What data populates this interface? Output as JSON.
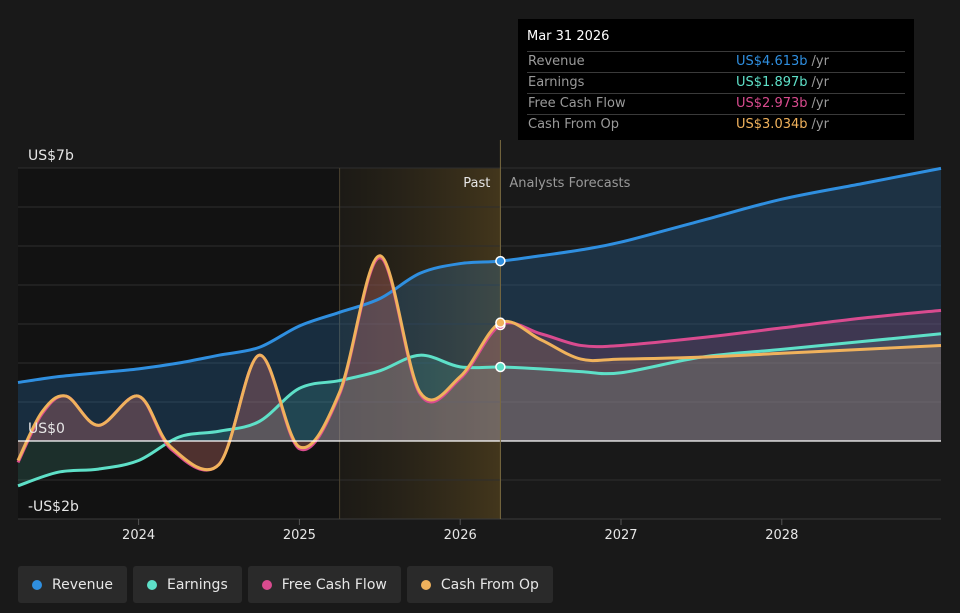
{
  "tooltip": {
    "date": "Mar 31 2026",
    "unit": "/yr",
    "rows": [
      {
        "name": "Revenue",
        "value": "US$4.613b",
        "color": "#2f8fe0"
      },
      {
        "name": "Earnings",
        "value": "US$1.897b",
        "color": "#5ee0c8"
      },
      {
        "name": "Free Cash Flow",
        "value": "US$2.973b",
        "color": "#d94b8f"
      },
      {
        "name": "Cash From Op",
        "value": "US$3.034b",
        "color": "#f0b25c"
      }
    ]
  },
  "labels": {
    "past": "Past",
    "forecast": "Analysts Forecasts"
  },
  "legend": [
    {
      "name": "Revenue",
      "color": "#2f8fe0"
    },
    {
      "name": "Earnings",
      "color": "#5ee0c8"
    },
    {
      "name": "Free Cash Flow",
      "color": "#d94b8f"
    },
    {
      "name": "Cash From Op",
      "color": "#f0b25c"
    }
  ],
  "chart_data": {
    "type": "area",
    "ylim": [
      -2,
      7
    ],
    "y_tick_labels": [
      {
        "value": 7,
        "label": "US$7b"
      },
      {
        "value": 0,
        "label": "US$0"
      },
      {
        "value": -2,
        "label": "-US$2b"
      }
    ],
    "x_ticks": [
      2024,
      2025,
      2026,
      2027,
      2028
    ],
    "xlim": [
      2023.25,
      2028.99
    ],
    "grid": true,
    "highlight_region": [
      2025.25,
      2026.25
    ],
    "divider_x": 2026.25,
    "series": [
      {
        "name": "Revenue",
        "color": "#2f8fe0",
        "points": [
          [
            2023.25,
            1.5
          ],
          [
            2023.5,
            1.65
          ],
          [
            2023.75,
            1.75
          ],
          [
            2024,
            1.85
          ],
          [
            2024.25,
            2.0
          ],
          [
            2024.5,
            2.2
          ],
          [
            2024.75,
            2.4
          ],
          [
            2025,
            2.95
          ],
          [
            2025.25,
            3.3
          ],
          [
            2025.5,
            3.65
          ],
          [
            2025.75,
            4.3
          ],
          [
            2026,
            4.55
          ],
          [
            2026.25,
            4.613
          ],
          [
            2026.5,
            4.75
          ],
          [
            2026.75,
            4.9
          ],
          [
            2027,
            5.1
          ],
          [
            2027.5,
            5.65
          ],
          [
            2028,
            6.2
          ],
          [
            2028.5,
            6.6
          ],
          [
            2028.99,
            6.99
          ]
        ]
      },
      {
        "name": "Earnings",
        "color": "#5ee0c8",
        "points": [
          [
            2023.25,
            -1.15
          ],
          [
            2023.5,
            -0.8
          ],
          [
            2023.75,
            -0.72
          ],
          [
            2024,
            -0.5
          ],
          [
            2024.25,
            0.1
          ],
          [
            2024.5,
            0.25
          ],
          [
            2024.75,
            0.5
          ],
          [
            2025,
            1.35
          ],
          [
            2025.25,
            1.55
          ],
          [
            2025.5,
            1.8
          ],
          [
            2025.75,
            2.2
          ],
          [
            2026,
            1.9
          ],
          [
            2026.25,
            1.897
          ],
          [
            2026.5,
            1.85
          ],
          [
            2026.75,
            1.78
          ],
          [
            2027,
            1.75
          ],
          [
            2027.5,
            2.15
          ],
          [
            2028,
            2.35
          ],
          [
            2028.5,
            2.55
          ],
          [
            2028.99,
            2.75
          ]
        ]
      },
      {
        "name": "Free Cash Flow",
        "color": "#d94b8f",
        "points": [
          [
            2023.25,
            -0.55
          ],
          [
            2023.4,
            0.7
          ],
          [
            2023.55,
            1.15
          ],
          [
            2023.75,
            0.4
          ],
          [
            2024,
            1.15
          ],
          [
            2024.2,
            -0.2
          ],
          [
            2024.5,
            -0.6
          ],
          [
            2024.75,
            2.2
          ],
          [
            2025,
            -0.2
          ],
          [
            2025.25,
            1.2
          ],
          [
            2025.5,
            4.7
          ],
          [
            2025.75,
            1.2
          ],
          [
            2026,
            1.6
          ],
          [
            2026.25,
            2.973
          ],
          [
            2026.5,
            2.75
          ],
          [
            2026.75,
            2.45
          ],
          [
            2027,
            2.45
          ],
          [
            2027.5,
            2.65
          ],
          [
            2028,
            2.9
          ],
          [
            2028.5,
            3.15
          ],
          [
            2028.99,
            3.35
          ]
        ]
      },
      {
        "name": "Cash From Op",
        "color": "#f0b25c",
        "points": [
          [
            2023.25,
            -0.5
          ],
          [
            2023.4,
            0.75
          ],
          [
            2023.55,
            1.15
          ],
          [
            2023.75,
            0.4
          ],
          [
            2024,
            1.15
          ],
          [
            2024.2,
            -0.15
          ],
          [
            2024.5,
            -0.6
          ],
          [
            2024.75,
            2.2
          ],
          [
            2025,
            -0.15
          ],
          [
            2025.25,
            1.25
          ],
          [
            2025.5,
            4.75
          ],
          [
            2025.75,
            1.25
          ],
          [
            2026,
            1.65
          ],
          [
            2026.25,
            3.034
          ],
          [
            2026.5,
            2.6
          ],
          [
            2026.75,
            2.1
          ],
          [
            2027,
            2.1
          ],
          [
            2027.5,
            2.15
          ],
          [
            2028,
            2.25
          ],
          [
            2028.5,
            2.35
          ],
          [
            2028.99,
            2.45
          ]
        ]
      }
    ]
  }
}
